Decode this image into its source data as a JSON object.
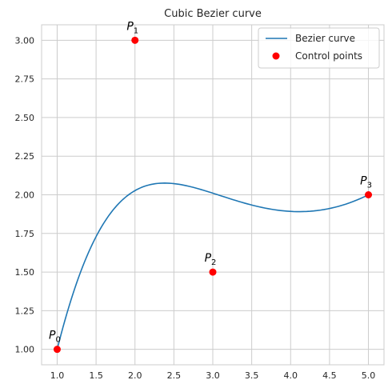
{
  "chart_data": {
    "type": "line",
    "title": "Cubic Bezier curve",
    "xlabel": "",
    "ylabel": "",
    "xlim": [
      0.8,
      5.2
    ],
    "ylim": [
      0.9,
      3.1
    ],
    "grid": true,
    "x_ticks": [
      "1.0",
      "1.5",
      "2.0",
      "2.5",
      "3.0",
      "3.5",
      "4.0",
      "4.5",
      "5.0"
    ],
    "y_ticks": [
      "1.00",
      "1.25",
      "1.50",
      "1.75",
      "2.00",
      "2.25",
      "2.50",
      "2.75",
      "3.00"
    ],
    "legend_position": "top-right",
    "series": [
      {
        "name": "Bezier curve",
        "kind": "line",
        "color": "#1f77b4"
      },
      {
        "name": "Control points",
        "kind": "scatter",
        "color": "#ff0000"
      }
    ],
    "control_points": [
      {
        "label": "P",
        "sub": "0",
        "x": 1,
        "y": 1
      },
      {
        "label": "P",
        "sub": "1",
        "x": 2,
        "y": 3
      },
      {
        "label": "P",
        "sub": "2",
        "x": 3,
        "y": 1.5
      },
      {
        "label": "P",
        "sub": "3",
        "x": 5,
        "y": 2
      }
    ]
  }
}
